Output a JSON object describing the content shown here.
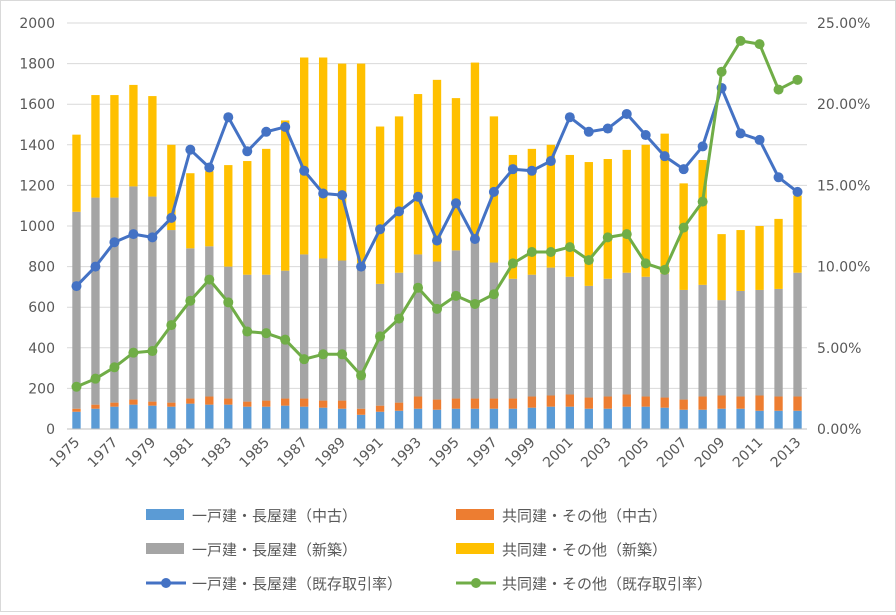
{
  "chart_data": {
    "type": "bar",
    "title": "",
    "xlabel": "",
    "ylabel": "",
    "y2label": "",
    "stacked": true,
    "ylim": [
      0,
      2000
    ],
    "y2lim": [
      0,
      0.25
    ],
    "grid": true,
    "legend_position": "bottom",
    "y_ticks": [
      "0",
      "200",
      "400",
      "600",
      "800",
      "1000",
      "1200",
      "1400",
      "1600",
      "1800",
      "2000"
    ],
    "y2_ticks": [
      "0.00%",
      "5.00%",
      "10.00%",
      "15.00%",
      "20.00%",
      "25.00%"
    ],
    "x_ticks": [
      "1975",
      "1977",
      "1979",
      "1981",
      "1983",
      "1985",
      "1987",
      "1989",
      "1991",
      "1993",
      "1995",
      "1997",
      "1999",
      "2001",
      "2003",
      "2005",
      "2007",
      "2009",
      "2011",
      "2013"
    ],
    "categories": [
      "1975",
      "1976",
      "1977",
      "1978",
      "1979",
      "1980",
      "1981",
      "1982",
      "1983",
      "1984",
      "1985",
      "1986",
      "1987",
      "1988",
      "1989",
      "1990",
      "1991",
      "1992",
      "1993",
      "1994",
      "1995",
      "1996",
      "1997",
      "1998",
      "1999",
      "2000",
      "2001",
      "2002",
      "2003",
      "2004",
      "2005",
      "2006",
      "2007",
      "2008",
      "2009",
      "2010",
      "2011",
      "2012",
      "2013"
    ],
    "series": [
      {
        "name": "一戸建・長屋建（中古）",
        "kind": "bar",
        "axis": "left",
        "color": "#5b9bd5",
        "values": [
          85,
          100,
          110,
          120,
          115,
          110,
          125,
          120,
          120,
          110,
          110,
          115,
          110,
          105,
          100,
          70,
          85,
          90,
          100,
          95,
          100,
          100,
          100,
          100,
          105,
          110,
          110,
          100,
          100,
          110,
          110,
          105,
          95,
          95,
          100,
          100,
          90,
          90,
          90
        ]
      },
      {
        "name": "共同建・その他（中古）",
        "kind": "bar",
        "axis": "left",
        "color": "#ed7d31",
        "values": [
          15,
          20,
          20,
          25,
          20,
          20,
          25,
          40,
          30,
          25,
          30,
          35,
          40,
          35,
          40,
          30,
          30,
          40,
          60,
          50,
          50,
          50,
          50,
          50,
          55,
          55,
          60,
          55,
          60,
          60,
          50,
          50,
          50,
          65,
          65,
          60,
          75,
          70,
          70
        ]
      },
      {
        "name": "一戸建・長屋建（新築）",
        "kind": "bar",
        "axis": "left",
        "color": "#a5a5a5",
        "values": [
          970,
          1020,
          1010,
          1050,
          1010,
          850,
          740,
          740,
          650,
          625,
          620,
          630,
          710,
          700,
          690,
          700,
          600,
          640,
          700,
          680,
          730,
          780,
          670,
          590,
          600,
          630,
          580,
          550,
          580,
          600,
          590,
          610,
          540,
          550,
          470,
          520,
          520,
          530,
          610
        ]
      },
      {
        "name": "共同建・その他（新築）",
        "kind": "bar",
        "axis": "left",
        "color": "#ffc000",
        "values": [
          380,
          505,
          505,
          500,
          495,
          420,
          370,
          370,
          500,
          560,
          620,
          740,
          970,
          990,
          970,
          1000,
          775,
          770,
          790,
          895,
          750,
          875,
          720,
          610,
          620,
          605,
          600,
          610,
          590,
          605,
          650,
          690,
          525,
          615,
          325,
          300,
          315,
          345,
          380
        ]
      },
      {
        "name": "一戸建・長屋建（既存取引率）",
        "kind": "line",
        "axis": "right",
        "color": "#4472c4",
        "values": [
          0.088,
          0.1,
          0.115,
          0.12,
          0.118,
          0.13,
          0.172,
          0.161,
          0.192,
          0.171,
          0.183,
          0.186,
          0.159,
          0.145,
          0.144,
          0.1,
          0.123,
          0.134,
          0.143,
          0.116,
          0.139,
          0.117,
          0.146,
          0.16,
          0.159,
          0.165,
          0.192,
          0.183,
          0.185,
          0.194,
          0.181,
          0.168,
          0.16,
          0.174,
          0.21,
          0.182,
          0.178,
          0.155,
          0.146
        ]
      },
      {
        "name": "共同建・その他（既存取引率）",
        "kind": "line",
        "axis": "right",
        "color": "#70ad47",
        "values": [
          0.026,
          0.031,
          0.038,
          0.047,
          0.048,
          0.064,
          0.079,
          0.092,
          0.078,
          0.06,
          0.059,
          0.055,
          0.043,
          0.046,
          0.046,
          0.033,
          0.057,
          0.068,
          0.087,
          0.074,
          0.082,
          0.077,
          0.083,
          0.102,
          0.109,
          0.109,
          0.112,
          0.104,
          0.118,
          0.12,
          0.102,
          0.098,
          0.124,
          0.14,
          0.22,
          0.239,
          0.237,
          0.209,
          0.215
        ]
      }
    ]
  }
}
